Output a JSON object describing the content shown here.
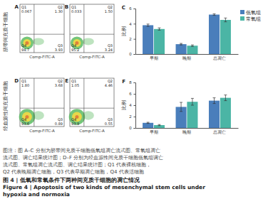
{
  "row_labels": [
    "脐带间充质干细胞",
    "经血源性间充质干细胞"
  ],
  "flow_panels": [
    {
      "label": "A",
      "x_label": "Comp-FITC-A",
      "quadrants": [
        {
          "name": "Q1",
          "value": "0.067"
        },
        {
          "name": "Q2",
          "value": "1.30"
        },
        {
          "name": "Q3",
          "value": "3.93"
        },
        {
          "name": "Q4",
          "value": "94.7"
        }
      ]
    },
    {
      "label": "B",
      "x_label": "Comp-FITC-A",
      "quadrants": [
        {
          "name": "Q1",
          "value": "0.033"
        },
        {
          "name": "Q2",
          "value": "1.50"
        },
        {
          "name": "Q3",
          "value": "3.24"
        },
        {
          "name": "Q4",
          "value": "95.2"
        }
      ]
    },
    {
      "label": "D",
      "x_label": "Comp-FITC-A",
      "quadrants": [
        {
          "name": "Q1",
          "value": "1.80"
        },
        {
          "name": "Q2",
          "value": "3.68"
        },
        {
          "name": "Q3",
          "value": "0.89"
        },
        {
          "name": "Q4",
          "value": "93.6"
        }
      ]
    },
    {
      "label": "E",
      "x_label": "Comp-FITC-A",
      "quadrants": [
        {
          "name": "Q1",
          "value": "1.05"
        },
        {
          "name": "Q2",
          "value": "4.46"
        },
        {
          "name": "Q3",
          "value": "0.55"
        },
        {
          "name": "Q4",
          "value": "93.9"
        }
      ]
    }
  ],
  "chart_data": [
    {
      "type": "bar",
      "title": "C",
      "y_label": "比例",
      "categories": [
        "早期",
        "晚期",
        "总凋亡"
      ],
      "series": [
        {
          "name": "低氧组",
          "color": "#4a7ebb",
          "values": [
            3.8,
            1.3,
            5.2
          ],
          "errors": [
            0.15,
            0.1,
            0.1
          ]
        },
        {
          "name": "常氧组",
          "color": "#4bb5a5",
          "values": [
            3.3,
            1.1,
            4.5
          ],
          "errors": [
            0.15,
            0.1,
            0.25
          ]
        }
      ],
      "ylim": [
        0,
        6
      ],
      "yticks": [
        0,
        2,
        4,
        6
      ],
      "legend": "upper right"
    },
    {
      "type": "bar",
      "title": "F",
      "y_label": "比例",
      "categories": [
        "早期",
        "晚期",
        "总凋亡"
      ],
      "series": [
        {
          "name": "低氧组",
          "color": "#4a7ebb",
          "values": [
            0.9,
            3.7,
            4.8
          ],
          "errors": [
            0.1,
            0.8,
            0.5
          ]
        },
        {
          "name": "常氧组",
          "color": "#4bb5a5",
          "values": [
            0.5,
            4.6,
            5.3
          ],
          "errors": [
            0.1,
            0.6,
            0.5
          ]
        }
      ],
      "ylim": [
        0,
        8
      ],
      "yticks": [
        0,
        2,
        4,
        6,
        8
      ]
    }
  ],
  "caption": {
    "note_lines": [
      "图注：图 A–C 分别为脐带间充质干细胞低氧组凋亡流式图、常氧组凋亡",
      "流式图、调亡结果统计图；D–F 分别为经血源性间充质干细胞低氧组调亡",
      "流式图、常氧组凋亡流式图、调亡结果统计图；Q1 代表裸核细胞，",
      "Q2 代表晚期凋亡细胞，Q3 代表早期凋亡细胞，Q4 代表活细胞"
    ],
    "title_cn": "图 4 | 低氧和常氧条件下两种间充质干细胞的凋亡情况",
    "title_en_lines": [
      "Figure 4 | Apoptosis of two kinds of mesenchymal stem cells under",
      "hypoxia and normoxia"
    ]
  }
}
